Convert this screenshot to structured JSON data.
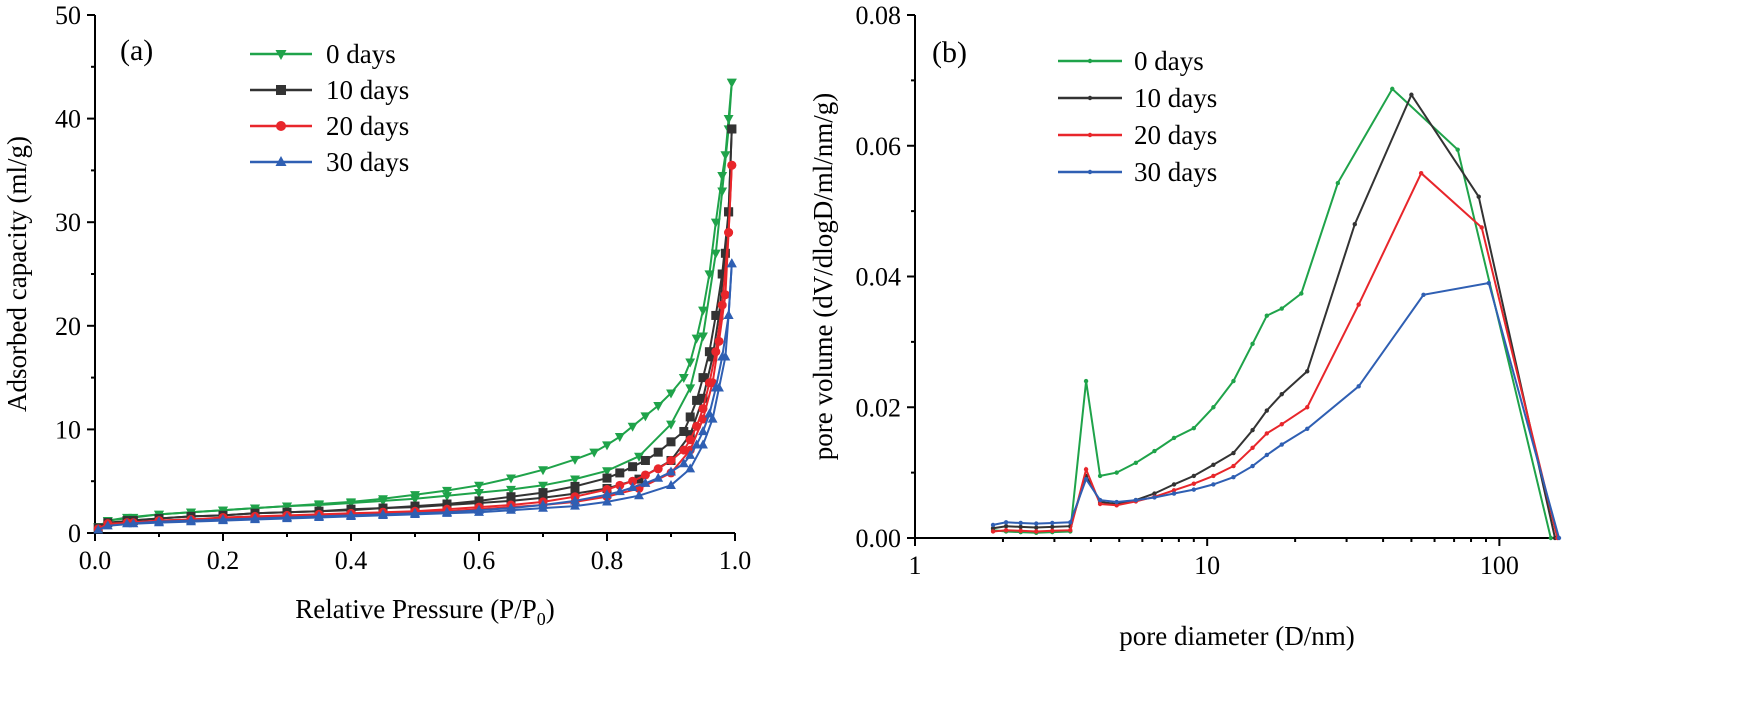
{
  "chart_data": [
    {
      "type": "line",
      "panel_label": "(a)",
      "title": "",
      "xlabel_prefix": "Relative Pressure (P/P",
      "xlabel_sub": "0",
      "xlabel_suffix": ")",
      "ylabel": "Adsorbed capacity (ml/g)",
      "xlim": [
        0,
        1.0
      ],
      "ylim": [
        0,
        50
      ],
      "xticks": [
        0.0,
        0.2,
        0.4,
        0.6,
        0.8,
        1.0
      ],
      "xtick_labels": [
        "0.0",
        "0.2",
        "0.4",
        "0.6",
        "0.8",
        "1.0"
      ],
      "yticks": [
        0,
        10,
        20,
        30,
        40,
        50
      ],
      "ytick_labels": [
        "0",
        "10",
        "20",
        "30",
        "40",
        "50"
      ],
      "legend_position": "top-left",
      "series": [
        {
          "name": "0 days",
          "color": "#1fa34a",
          "marker": "triangle-down",
          "adsorption": {
            "x": [
              0.005,
              0.02,
              0.06,
              0.1,
              0.15,
              0.2,
              0.25,
              0.3,
              0.35,
              0.4,
              0.45,
              0.5,
              0.55,
              0.6,
              0.65,
              0.7,
              0.75,
              0.8,
              0.85,
              0.9,
              0.93,
              0.95,
              0.97,
              0.98,
              0.99,
              0.995
            ],
            "y": [
              0.6,
              1.2,
              1.5,
              1.8,
              2.0,
              2.2,
              2.4,
              2.6,
              2.7,
              2.9,
              3.1,
              3.3,
              3.6,
              3.9,
              4.2,
              4.6,
              5.2,
              6.0,
              7.4,
              10.5,
              14.0,
              19.0,
              27.0,
              33.0,
              39.0,
              43.5
            ]
          },
          "desorption": {
            "x": [
              0.995,
              0.99,
              0.985,
              0.98,
              0.97,
              0.96,
              0.95,
              0.94,
              0.93,
              0.92,
              0.9,
              0.88,
              0.86,
              0.84,
              0.82,
              0.8,
              0.78,
              0.75,
              0.7,
              0.65,
              0.6,
              0.55,
              0.5,
              0.45,
              0.4,
              0.35,
              0.3,
              0.25,
              0.2,
              0.15,
              0.1,
              0.05,
              0.02
            ],
            "y": [
              43.5,
              40.0,
              36.5,
              34.5,
              30.0,
              25.0,
              21.5,
              18.8,
              16.5,
              15.0,
              13.5,
              12.3,
              11.3,
              10.3,
              9.3,
              8.5,
              7.8,
              7.1,
              6.1,
              5.3,
              4.6,
              4.1,
              3.7,
              3.3,
              3.0,
              2.8,
              2.6,
              2.4,
              2.2,
              2.0,
              1.8,
              1.5,
              1.2
            ]
          }
        },
        {
          "name": "10 days",
          "color": "#333333",
          "marker": "square",
          "adsorption": {
            "x": [
              0.005,
              0.02,
              0.06,
              0.1,
              0.15,
              0.2,
              0.25,
              0.3,
              0.35,
              0.4,
              0.45,
              0.5,
              0.55,
              0.6,
              0.65,
              0.7,
              0.75,
              0.8,
              0.85,
              0.9,
              0.93,
              0.95,
              0.965,
              0.975,
              0.985,
              0.99,
              0.995
            ],
            "y": [
              0.5,
              1.0,
              1.2,
              1.4,
              1.6,
              1.7,
              1.9,
              2.0,
              2.1,
              2.2,
              2.4,
              2.5,
              2.7,
              2.9,
              3.1,
              3.4,
              3.8,
              4.3,
              5.2,
              7.0,
              9.5,
              13.0,
              17.0,
              21.0,
              27.0,
              31.0,
              39.0
            ]
          },
          "desorption": {
            "x": [
              0.995,
              0.99,
              0.98,
              0.97,
              0.96,
              0.95,
              0.94,
              0.93,
              0.92,
              0.9,
              0.88,
              0.86,
              0.84,
              0.82,
              0.8,
              0.75,
              0.7,
              0.65,
              0.6,
              0.55,
              0.5,
              0.45,
              0.4,
              0.35,
              0.3,
              0.25,
              0.2,
              0.15,
              0.1,
              0.05
            ],
            "y": [
              39.0,
              31.0,
              25.0,
              21.0,
              17.5,
              15.0,
              12.8,
              11.2,
              9.8,
              8.8,
              7.8,
              7.0,
              6.4,
              5.8,
              5.3,
              4.5,
              3.9,
              3.5,
              3.1,
              2.8,
              2.6,
              2.4,
              2.3,
              2.1,
              2.0,
              1.9,
              1.7,
              1.6,
              1.4,
              1.2
            ]
          }
        },
        {
          "name": "20 days",
          "color": "#e8262b",
          "marker": "circle",
          "adsorption": {
            "x": [
              0.005,
              0.02,
              0.06,
              0.1,
              0.15,
              0.2,
              0.25,
              0.3,
              0.35,
              0.4,
              0.45,
              0.5,
              0.55,
              0.6,
              0.65,
              0.7,
              0.75,
              0.8,
              0.85,
              0.9,
              0.93,
              0.95,
              0.965,
              0.975,
              0.985,
              0.99,
              0.995
            ],
            "y": [
              0.4,
              0.9,
              1.0,
              1.2,
              1.3,
              1.4,
              1.5,
              1.6,
              1.7,
              1.8,
              1.9,
              2.0,
              2.1,
              2.3,
              2.5,
              2.7,
              3.0,
              3.5,
              4.3,
              5.8,
              8.0,
              11.0,
              14.5,
              18.5,
              23.0,
              29.0,
              35.5
            ]
          },
          "desorption": {
            "x": [
              0.995,
              0.99,
              0.98,
              0.97,
              0.96,
              0.95,
              0.94,
              0.93,
              0.92,
              0.9,
              0.88,
              0.86,
              0.84,
              0.82,
              0.8,
              0.75,
              0.7,
              0.65,
              0.6,
              0.55,
              0.5,
              0.45,
              0.4,
              0.35,
              0.3,
              0.25,
              0.2,
              0.15,
              0.1,
              0.05
            ],
            "y": [
              35.5,
              29.0,
              22.0,
              17.5,
              14.5,
              12.0,
              10.3,
              9.0,
              8.0,
              7.0,
              6.2,
              5.6,
              5.0,
              4.6,
              4.2,
              3.5,
              3.0,
              2.7,
              2.5,
              2.3,
              2.1,
              2.0,
              1.9,
              1.8,
              1.7,
              1.6,
              1.5,
              1.3,
              1.2,
              1.0
            ]
          }
        },
        {
          "name": "30 days",
          "color": "#2f5fb3",
          "marker": "triangle-up",
          "adsorption": {
            "x": [
              0.005,
              0.02,
              0.06,
              0.1,
              0.15,
              0.2,
              0.25,
              0.3,
              0.35,
              0.4,
              0.45,
              0.5,
              0.55,
              0.6,
              0.65,
              0.7,
              0.75,
              0.8,
              0.85,
              0.9,
              0.93,
              0.95,
              0.965,
              0.975,
              0.985,
              0.99,
              0.995
            ],
            "y": [
              0.3,
              0.7,
              0.9,
              1.0,
              1.1,
              1.2,
              1.3,
              1.4,
              1.5,
              1.6,
              1.7,
              1.8,
              1.9,
              2.0,
              2.2,
              2.4,
              2.6,
              3.0,
              3.6,
              4.6,
              6.2,
              8.5,
              11.0,
              14.0,
              17.0,
              21.0,
              26.0
            ]
          },
          "desorption": {
            "x": [
              0.995,
              0.99,
              0.98,
              0.97,
              0.96,
              0.95,
              0.94,
              0.93,
              0.92,
              0.9,
              0.88,
              0.86,
              0.84,
              0.82,
              0.8,
              0.75,
              0.7,
              0.65,
              0.6,
              0.55,
              0.5,
              0.45,
              0.4,
              0.35,
              0.3,
              0.25,
              0.2,
              0.15,
              0.1,
              0.05
            ],
            "y": [
              26.0,
              21.0,
              17.0,
              14.0,
              11.5,
              9.8,
              8.5,
              7.5,
              6.7,
              5.9,
              5.3,
              4.8,
              4.4,
              4.0,
              3.7,
              3.1,
              2.7,
              2.4,
              2.2,
              2.0,
              1.9,
              1.8,
              1.7,
              1.6,
              1.5,
              1.4,
              1.3,
              1.2,
              1.1,
              0.9
            ]
          }
        }
      ]
    },
    {
      "type": "line",
      "panel_label": "(b)",
      "title": "",
      "xlabel": "pore diameter (D/nm)",
      "ylabel": "pore volume (dV/dlogD/ml/nm/g)",
      "xscale": "log",
      "xlim": [
        1,
        160
      ],
      "ylim": [
        0,
        0.08
      ],
      "xticks": [
        1,
        10,
        100
      ],
      "xtick_labels": [
        "1",
        "10",
        "100"
      ],
      "yticks": [
        0.0,
        0.02,
        0.04,
        0.06,
        0.08
      ],
      "ytick_labels": [
        "0.00",
        "0.02",
        "0.04",
        "0.06",
        "0.08"
      ],
      "legend_position": "top-left",
      "series": [
        {
          "name": "0 days",
          "color": "#1fa34a",
          "x": [
            1.85,
            2.05,
            2.3,
            2.6,
            2.95,
            3.4,
            3.85,
            4.3,
            4.9,
            5.7,
            6.6,
            7.7,
            9.0,
            10.5,
            12.3,
            14.3,
            16.0,
            18.0,
            21.0,
            28.0,
            43.0,
            72.0,
            150.0
          ],
          "y": [
            0.0012,
            0.001,
            0.0009,
            0.0008,
            0.0009,
            0.001,
            0.024,
            0.0095,
            0.01,
            0.0115,
            0.0133,
            0.0153,
            0.0168,
            0.02,
            0.024,
            0.0297,
            0.034,
            0.0351,
            0.0374,
            0.0543,
            0.0687,
            0.0594,
            0.0
          ]
        },
        {
          "name": "10 days",
          "color": "#333333",
          "x": [
            1.85,
            2.05,
            2.3,
            2.6,
            2.95,
            3.4,
            3.85,
            4.3,
            4.9,
            5.7,
            6.6,
            7.7,
            9.0,
            10.5,
            12.3,
            14.3,
            16.0,
            18.0,
            22.0,
            32.0,
            50.0,
            85.0,
            155.0
          ],
          "y": [
            0.0015,
            0.0018,
            0.0017,
            0.0016,
            0.0017,
            0.0018,
            0.0095,
            0.0055,
            0.0052,
            0.0058,
            0.0068,
            0.0082,
            0.0095,
            0.0112,
            0.013,
            0.0165,
            0.0195,
            0.022,
            0.0255,
            0.048,
            0.0678,
            0.0522,
            0.0
          ]
        },
        {
          "name": "20 days",
          "color": "#e8262b",
          "x": [
            1.85,
            2.05,
            2.3,
            2.6,
            2.95,
            3.4,
            3.85,
            4.3,
            4.9,
            5.7,
            6.6,
            7.7,
            9.0,
            10.5,
            12.3,
            14.3,
            16.0,
            18.0,
            22.0,
            33.0,
            54.0,
            87.0,
            158.0
          ],
          "y": [
            0.001,
            0.0012,
            0.0011,
            0.001,
            0.0011,
            0.0012,
            0.0105,
            0.0052,
            0.005,
            0.0056,
            0.0063,
            0.0073,
            0.0083,
            0.0095,
            0.011,
            0.0138,
            0.016,
            0.0174,
            0.02,
            0.0357,
            0.0558,
            0.0475,
            0.0
          ]
        },
        {
          "name": "30 days",
          "color": "#2f5fb3",
          "x": [
            1.85,
            2.05,
            2.3,
            2.6,
            2.95,
            3.4,
            3.85,
            4.3,
            4.9,
            5.7,
            6.6,
            7.7,
            9.0,
            10.5,
            12.3,
            14.3,
            16.0,
            18.0,
            22.0,
            33.0,
            55.0,
            92.0,
            160.0
          ],
          "y": [
            0.002,
            0.0024,
            0.0023,
            0.0022,
            0.0023,
            0.0024,
            0.009,
            0.0058,
            0.0055,
            0.0058,
            0.0062,
            0.0068,
            0.0074,
            0.0082,
            0.0093,
            0.011,
            0.0127,
            0.0143,
            0.0167,
            0.0232,
            0.0372,
            0.039,
            0.0
          ]
        }
      ]
    }
  ]
}
